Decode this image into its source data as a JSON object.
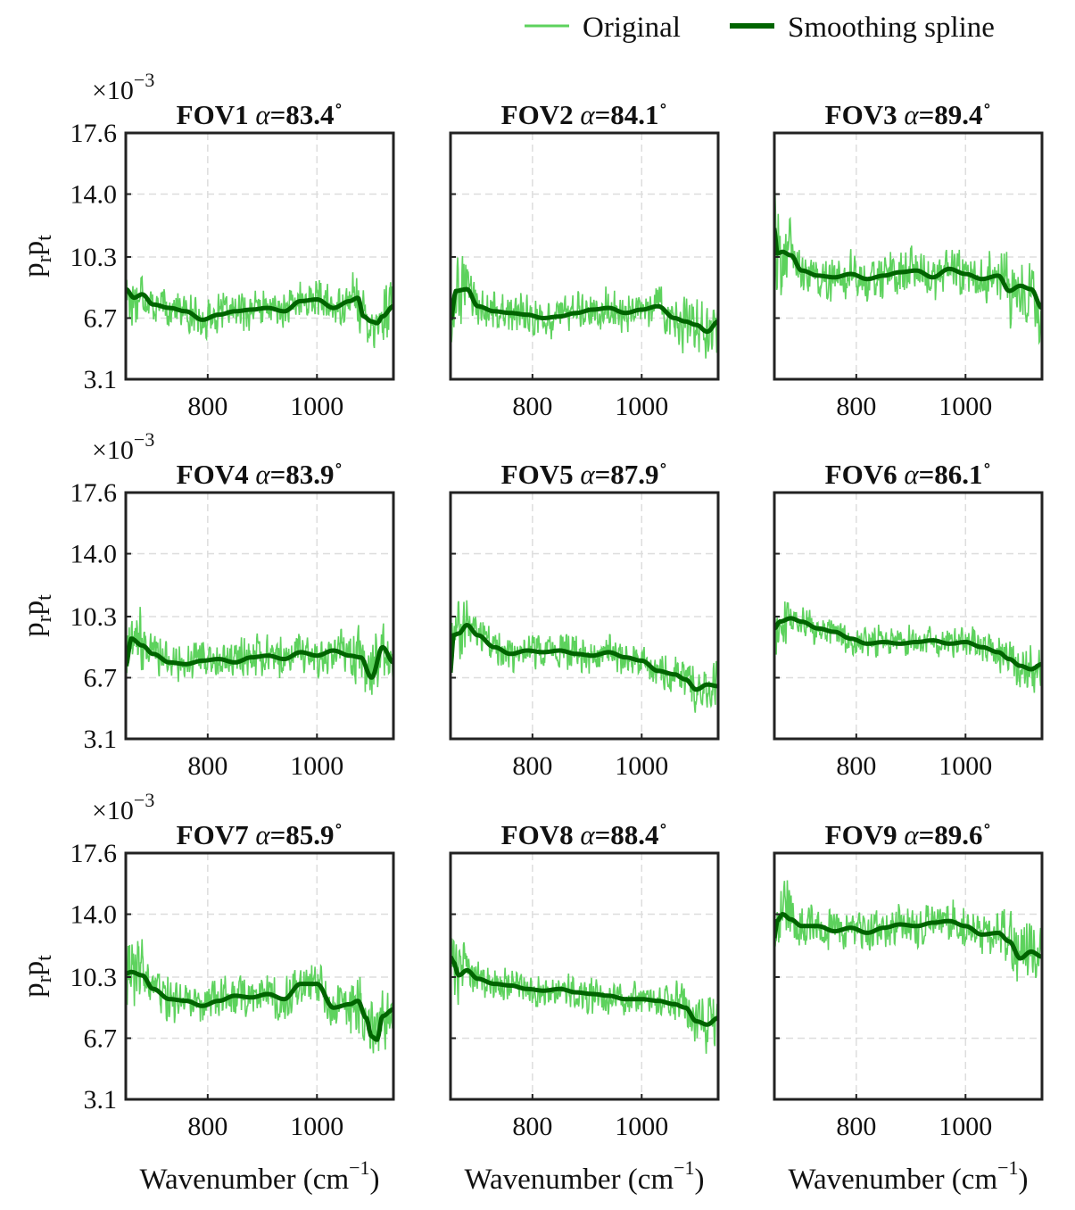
{
  "legend": {
    "original": "Original",
    "spline": "Smoothing spline"
  },
  "colors": {
    "original": "#5dd25d",
    "spline": "#006400",
    "grid": "#dddddd",
    "axis": "#222222"
  },
  "chart_data": {
    "type": "line",
    "layout": "3x3 grid",
    "ylabel": "p_r p_t",
    "xlabel": "Wavenumber (cm^-1)",
    "y_multiplier": "×10^-3",
    "xlim": [
      650,
      1140
    ],
    "ylim": [
      3.1,
      17.6
    ],
    "xticks": [
      800,
      1000
    ],
    "yticks": [
      3.1,
      6.7,
      10.3,
      14.0,
      17.6
    ],
    "grid": true,
    "legend_position": "top-right",
    "series_names": [
      "Original",
      "Smoothing spline"
    ],
    "panels": [
      {
        "fov": "FOV1",
        "alpha": "83.4",
        "spline_x": [
          650,
          665,
          680,
          700,
          730,
          760,
          790,
          820,
          850,
          880,
          910,
          940,
          970,
          1000,
          1030,
          1060,
          1075,
          1085,
          1100,
          1110,
          1120,
          1140
        ],
        "spline_y": [
          8.4,
          7.9,
          8.1,
          7.5,
          7.3,
          7.1,
          6.6,
          6.9,
          7.1,
          7.2,
          7.3,
          7.1,
          7.7,
          7.8,
          7.3,
          7.7,
          7.9,
          6.8,
          6.5,
          6.4,
          6.8,
          7.4
        ],
        "noise": 1.3
      },
      {
        "fov": "FOV2",
        "alpha": "84.1",
        "spline_x": [
          650,
          660,
          680,
          700,
          730,
          760,
          790,
          820,
          850,
          880,
          910,
          940,
          970,
          1000,
          1030,
          1060,
          1080,
          1100,
          1120,
          1140
        ],
        "spline_y": [
          6.6,
          8.3,
          8.4,
          7.4,
          7.1,
          7.0,
          6.9,
          6.7,
          6.8,
          7.0,
          7.2,
          7.3,
          7.0,
          7.2,
          7.4,
          6.7,
          6.5,
          6.3,
          5.9,
          6.5
        ],
        "noise": 1.4
      },
      {
        "fov": "FOV3",
        "alpha": "89.4",
        "spline_x": [
          650,
          655,
          665,
          680,
          700,
          730,
          760,
          790,
          820,
          850,
          880,
          910,
          940,
          970,
          1000,
          1030,
          1060,
          1080,
          1100,
          1120,
          1140
        ],
        "spline_y": [
          12.0,
          10.5,
          10.6,
          10.4,
          9.5,
          9.2,
          9.1,
          9.3,
          9.0,
          9.2,
          9.4,
          9.5,
          9.1,
          9.6,
          9.3,
          9.0,
          9.2,
          8.3,
          8.6,
          8.4,
          7.3
        ],
        "noise": 1.6
      },
      {
        "fov": "FOV4",
        "alpha": "83.9",
        "spline_x": [
          650,
          660,
          680,
          700,
          730,
          760,
          790,
          820,
          850,
          880,
          910,
          940,
          970,
          1000,
          1030,
          1060,
          1080,
          1100,
          1120,
          1140
        ],
        "spline_y": [
          7.4,
          9.0,
          8.6,
          8.1,
          7.6,
          7.5,
          7.7,
          7.8,
          7.6,
          7.9,
          8.0,
          7.8,
          8.2,
          8.0,
          8.3,
          8.0,
          7.9,
          6.7,
          8.5,
          7.6
        ],
        "noise": 1.5
      },
      {
        "fov": "FOV5",
        "alpha": "87.9",
        "spline_x": [
          650,
          655,
          665,
          680,
          700,
          730,
          760,
          790,
          820,
          850,
          880,
          910,
          940,
          970,
          1000,
          1030,
          1060,
          1080,
          1100,
          1120,
          1140
        ],
        "spline_y": [
          7.0,
          9.2,
          9.3,
          9.8,
          9.2,
          8.5,
          8.1,
          8.3,
          8.2,
          8.3,
          8.1,
          8.0,
          8.2,
          7.9,
          7.7,
          7.1,
          6.9,
          6.6,
          6.0,
          6.3,
          6.2
        ],
        "noise": 1.2
      },
      {
        "fov": "FOV6",
        "alpha": "86.1",
        "spline_x": [
          650,
          660,
          680,
          700,
          730,
          760,
          790,
          820,
          850,
          880,
          910,
          940,
          970,
          1000,
          1030,
          1060,
          1080,
          1100,
          1120,
          1140
        ],
        "spline_y": [
          9.6,
          10.0,
          10.2,
          10.0,
          9.6,
          9.4,
          9.0,
          8.7,
          8.8,
          8.7,
          8.8,
          8.9,
          8.7,
          8.8,
          8.5,
          8.2,
          7.8,
          7.4,
          7.2,
          7.5
        ],
        "noise": 1.1
      },
      {
        "fov": "FOV7",
        "alpha": "85.9",
        "spline_x": [
          650,
          660,
          680,
          700,
          730,
          760,
          790,
          820,
          850,
          880,
          910,
          940,
          970,
          1000,
          1030,
          1060,
          1075,
          1090,
          1100,
          1110,
          1120,
          1140
        ],
        "spline_y": [
          10.5,
          10.6,
          10.4,
          9.6,
          9.0,
          8.9,
          8.6,
          8.9,
          9.2,
          9.1,
          9.3,
          9.0,
          9.9,
          9.9,
          8.5,
          8.7,
          8.9,
          7.9,
          6.8,
          6.6,
          8.0,
          8.4
        ],
        "noise": 1.5
      },
      {
        "fov": "FOV8",
        "alpha": "88.4",
        "spline_x": [
          650,
          655,
          665,
          680,
          700,
          730,
          760,
          790,
          820,
          850,
          880,
          910,
          940,
          970,
          1000,
          1030,
          1060,
          1080,
          1100,
          1120,
          1140
        ],
        "spline_y": [
          11.5,
          11.2,
          10.4,
          10.7,
          10.2,
          9.9,
          9.8,
          9.6,
          9.5,
          9.6,
          9.4,
          9.3,
          9.2,
          9.0,
          9.0,
          8.9,
          8.7,
          8.5,
          7.7,
          7.5,
          7.9
        ],
        "noise": 1.2
      },
      {
        "fov": "FOV9",
        "alpha": "89.6",
        "spline_x": [
          650,
          655,
          665,
          680,
          700,
          730,
          760,
          790,
          820,
          850,
          880,
          910,
          940,
          970,
          1000,
          1030,
          1060,
          1080,
          1100,
          1120,
          1140
        ],
        "spline_y": [
          12.6,
          13.6,
          14.0,
          13.7,
          13.3,
          13.3,
          13.0,
          13.2,
          12.9,
          13.2,
          13.4,
          13.3,
          13.5,
          13.6,
          13.3,
          12.8,
          12.9,
          12.4,
          11.4,
          11.8,
          11.5
        ],
        "noise": 1.4
      }
    ]
  }
}
